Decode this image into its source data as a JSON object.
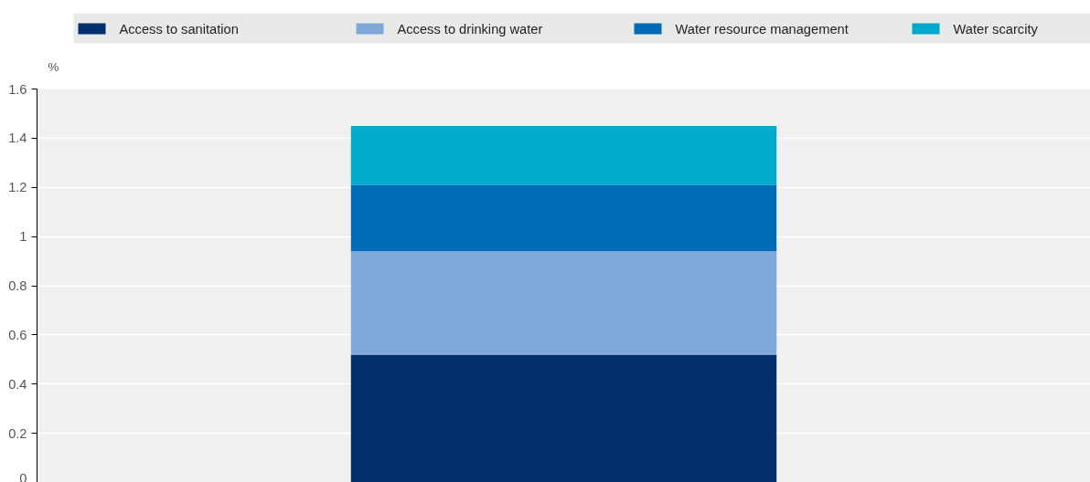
{
  "chart_data": {
    "type": "bar",
    "stacked": true,
    "ylabel": "%",
    "categories": [
      null
    ],
    "series": [
      {
        "name": "Access to sanitation",
        "color": "#002f6c",
        "values": [
          0.52
        ]
      },
      {
        "name": "Access to drinking water",
        "color": "#7fa8d9",
        "values": [
          0.42
        ]
      },
      {
        "name": "Water resource management",
        "color": "#006bb6",
        "values": [
          0.27
        ]
      },
      {
        "name": "Water scarcity",
        "color": "#00aacc",
        "values": [
          0.24
        ]
      }
    ],
    "ylim": [
      0,
      1.6
    ],
    "yticks": [
      0,
      0.2,
      0.4,
      0.6,
      0.8,
      1,
      1.2,
      1.4,
      1.6
    ],
    "grid": "y",
    "legend": "top",
    "tick_labels": "y"
  }
}
